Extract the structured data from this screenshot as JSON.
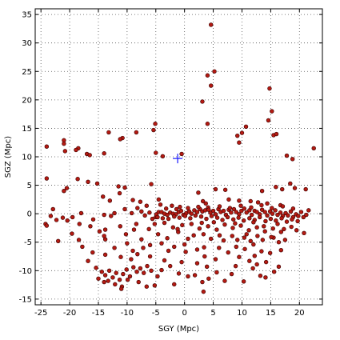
{
  "chart_data": {
    "type": "scatter",
    "xlabel": "SGY (Mpc)",
    "ylabel": "SGZ (Mpc)",
    "xlim": [
      -26,
      24
    ],
    "ylim": [
      -16,
      36
    ],
    "xticks": [
      -25,
      -20,
      -15,
      -10,
      -5,
      0,
      5,
      10,
      15,
      20
    ],
    "yticks": [
      -15,
      -10,
      -5,
      0,
      5,
      10,
      15,
      20,
      25,
      30,
      35
    ],
    "grid": true,
    "marker": {
      "shape": "circle",
      "fill": "#b41a12",
      "edge": "#3a0000"
    },
    "reference_point": {
      "x": -1.2,
      "y": 9.7,
      "marker": "plus",
      "color": "#1a1aff"
    },
    "points": [
      [
        4.6,
        33.2
      ],
      [
        5.2,
        25.0
      ],
      [
        4.0,
        24.3
      ],
      [
        4.6,
        22.5
      ],
      [
        3.1,
        19.7
      ],
      [
        14.8,
        22.0
      ],
      [
        15.2,
        18.0
      ],
      [
        14.6,
        16.4
      ],
      [
        4.0,
        15.8
      ],
      [
        -5.1,
        15.8
      ],
      [
        10.7,
        15.3
      ],
      [
        -13.2,
        14.3
      ],
      [
        -8.4,
        14.3
      ],
      [
        10.0,
        14.2
      ],
      [
        -5.4,
        14.7
      ],
      [
        -21.0,
        12.9
      ],
      [
        -21.0,
        12.3
      ],
      [
        -10.8,
        13.3
      ],
      [
        -11.2,
        13.1
      ],
      [
        9.2,
        13.7
      ],
      [
        9.5,
        12.5
      ],
      [
        -24.0,
        11.8
      ],
      [
        -18.5,
        11.5
      ],
      [
        -18.9,
        11.2
      ],
      [
        -20.8,
        11.0
      ],
      [
        -17.0,
        10.5
      ],
      [
        -14.0,
        10.6
      ],
      [
        -5.0,
        10.7
      ],
      [
        -3.8,
        10.1
      ],
      [
        -0.5,
        10.5
      ],
      [
        15.5,
        13.8
      ],
      [
        16.0,
        14.0
      ],
      [
        22.5,
        11.5
      ],
      [
        17.8,
        10.2
      ],
      [
        18.8,
        9.6
      ],
      [
        -16.5,
        10.3
      ],
      [
        -16.8,
        5.6
      ],
      [
        -24.0,
        6.2
      ],
      [
        -18.6,
        6.1
      ],
      [
        -15.2,
        5.3
      ],
      [
        -20.5,
        4.5
      ],
      [
        -21.0,
        4.0
      ],
      [
        -11.5,
        4.8
      ],
      [
        -10.4,
        4.6
      ],
      [
        -11.3,
        3.6
      ],
      [
        -5.8,
        5.2
      ],
      [
        2.4,
        3.7
      ],
      [
        5.4,
        4.3
      ],
      [
        7.1,
        4.2
      ],
      [
        13.5,
        4.0
      ],
      [
        15.9,
        4.7
      ],
      [
        18.4,
        5.3
      ],
      [
        19.2,
        4.5
      ],
      [
        17.0,
        4.3
      ],
      [
        21.1,
        4.3
      ],
      [
        -14.2,
        3.0
      ],
      [
        -13.0,
        2.3
      ],
      [
        -9.0,
        2.4
      ],
      [
        -7.7,
        2.1
      ],
      [
        -4.5,
        2.5
      ],
      [
        -4.2,
        1.6
      ],
      [
        -6.6,
        1.4
      ],
      [
        -8.2,
        1.0
      ],
      [
        -2.2,
        1.4
      ],
      [
        -0.8,
        1.2
      ],
      [
        3.2,
        2.2
      ],
      [
        3.7,
        1.8
      ],
      [
        7.7,
        2.5
      ],
      [
        9.5,
        2.3
      ],
      [
        11.5,
        2.2
      ],
      [
        12.8,
        2.0
      ],
      [
        14.4,
        1.8
      ],
      [
        16.7,
        1.5
      ],
      [
        -22.9,
        0.8
      ],
      [
        -18.0,
        0.1
      ],
      [
        -14.0,
        -0.2
      ],
      [
        -12.8,
        -0.4
      ],
      [
        -10.4,
        0.8
      ],
      [
        -9.2,
        0.1
      ],
      [
        -23.3,
        -0.4
      ],
      [
        -21.2,
        -0.7
      ],
      [
        -20.4,
        -1.2
      ],
      [
        -18.3,
        -1.8
      ],
      [
        -15.9,
        -1.0
      ],
      [
        -24.2,
        -1.8
      ],
      [
        -22.0,
        -4.8
      ],
      [
        -18.4,
        -4.6
      ],
      [
        -14.8,
        -3.1
      ],
      [
        -13.8,
        -4.5
      ],
      [
        -11.2,
        -2.2
      ],
      [
        -8.4,
        -1.8
      ],
      [
        -6.2,
        -2.7
      ],
      [
        -5.0,
        -0.6
      ],
      [
        -4.9,
        -0.1
      ],
      [
        -4.5,
        0.3
      ],
      [
        -4.0,
        0.3
      ],
      [
        -3.5,
        0.0
      ],
      [
        -3.0,
        -0.2
      ],
      [
        -2.5,
        0.2
      ],
      [
        -2.0,
        0.0
      ],
      [
        -1.5,
        -0.1
      ],
      [
        -1.0,
        0.3
      ],
      [
        -0.6,
        0.5
      ],
      [
        -0.2,
        -0.2
      ],
      [
        0.3,
        0.1
      ],
      [
        0.8,
        0.4
      ],
      [
        1.2,
        0.0
      ],
      [
        1.7,
        0.6
      ],
      [
        2.2,
        0.3
      ],
      [
        2.7,
        0.8
      ],
      [
        3.1,
        0.4
      ],
      [
        3.6,
        0.6
      ],
      [
        4.1,
        1.1
      ],
      [
        4.5,
        0.2
      ],
      [
        5.0,
        0.5
      ],
      [
        5.4,
        -0.1
      ],
      [
        5.9,
        0.8
      ],
      [
        6.3,
        0.3
      ],
      [
        6.8,
        0.5
      ],
      [
        7.2,
        -0.2
      ],
      [
        7.7,
        0.7
      ],
      [
        8.1,
        0.2
      ],
      [
        8.6,
        0.8
      ],
      [
        9.0,
        0.3
      ],
      [
        9.5,
        -0.1
      ],
      [
        9.9,
        0.5
      ],
      [
        10.4,
        0.9
      ],
      [
        10.8,
        0.2
      ],
      [
        11.3,
        0.6
      ],
      [
        11.7,
        -0.2
      ],
      [
        12.2,
        0.5
      ],
      [
        12.6,
        0.3
      ],
      [
        13.1,
        -0.1
      ],
      [
        13.5,
        0.7
      ],
      [
        14.0,
        0.3
      ],
      [
        14.4,
        -0.3
      ],
      [
        14.9,
        0.4
      ],
      [
        15.3,
        0.0
      ],
      [
        15.8,
        0.6
      ],
      [
        16.2,
        -0.2
      ],
      [
        16.7,
        0.2
      ],
      [
        17.1,
        -0.4
      ],
      [
        17.6,
        0.1
      ],
      [
        18.0,
        -0.3
      ],
      [
        18.5,
        0.4
      ],
      [
        18.9,
        -0.6
      ],
      [
        19.4,
        -0.1
      ],
      [
        19.8,
        -0.4
      ],
      [
        20.3,
        0.3
      ],
      [
        20.7,
        -0.6
      ],
      [
        21.2,
        -0.2
      ],
      [
        21.6,
        0.6
      ],
      [
        -4.7,
        -0.6
      ],
      [
        -3.8,
        -0.8
      ],
      [
        -2.8,
        -0.9
      ],
      [
        -1.8,
        -0.5
      ],
      [
        -0.9,
        -0.7
      ],
      [
        0.1,
        -0.4
      ],
      [
        1.0,
        -0.8
      ],
      [
        1.9,
        -0.3
      ],
      [
        2.9,
        -0.5
      ],
      [
        3.8,
        -0.9
      ],
      [
        4.7,
        -0.4
      ],
      [
        5.7,
        -0.7
      ],
      [
        6.6,
        -1.1
      ],
      [
        7.5,
        -0.6
      ],
      [
        8.5,
        -1.0
      ],
      [
        9.4,
        -0.7
      ],
      [
        10.3,
        -1.2
      ],
      [
        11.3,
        -0.8
      ],
      [
        12.2,
        -1.1
      ],
      [
        13.1,
        -0.6
      ],
      [
        14.1,
        -1.3
      ],
      [
        15.0,
        -0.9
      ],
      [
        15.9,
        -1.2
      ],
      [
        16.9,
        -0.8
      ],
      [
        17.8,
        -1.4
      ],
      [
        18.7,
        -1.0
      ],
      [
        19.7,
        -1.3
      ],
      [
        -3.2,
        0.9
      ],
      [
        -1.4,
        0.8
      ],
      [
        0.6,
        1.0
      ],
      [
        2.4,
        1.2
      ],
      [
        4.2,
        0.7
      ],
      [
        6.1,
        1.3
      ],
      [
        7.9,
        1.0
      ],
      [
        9.8,
        1.4
      ],
      [
        11.6,
        1.1
      ],
      [
        13.4,
        1.5
      ],
      [
        15.2,
        1.0
      ],
      [
        17.1,
        1.3
      ],
      [
        18.9,
        0.9
      ],
      [
        -5.2,
        -1.8
      ],
      [
        -3.5,
        -1.6
      ],
      [
        -2.0,
        -2.4
      ],
      [
        -0.4,
        -2.0
      ],
      [
        1.2,
        -1.8
      ],
      [
        2.6,
        -2.6
      ],
      [
        4.1,
        -2.2
      ],
      [
        5.6,
        -2.8
      ],
      [
        7.0,
        -1.9
      ],
      [
        8.4,
        -2.5
      ],
      [
        9.8,
        -2.1
      ],
      [
        11.2,
        -2.9
      ],
      [
        12.6,
        -2.4
      ],
      [
        14.0,
        -3.1
      ],
      [
        15.4,
        -2.6
      ],
      [
        16.8,
        -3.2
      ],
      [
        -4.6,
        -3.6
      ],
      [
        -3.0,
        -4.3
      ],
      [
        -1.1,
        -3.2
      ],
      [
        0.6,
        -4.4
      ],
      [
        1.6,
        -3.8
      ],
      [
        3.3,
        -3.6
      ],
      [
        4.6,
        -4.4
      ],
      [
        6.1,
        -3.8
      ],
      [
        8.3,
        -3.9
      ],
      [
        9.2,
        -4.6
      ],
      [
        10.4,
        -4.2
      ],
      [
        11.5,
        -4.8
      ],
      [
        12.7,
        -3.9
      ],
      [
        13.6,
        -4.6
      ],
      [
        15.5,
        -4.2
      ],
      [
        16.4,
        -5.0
      ],
      [
        17.5,
        -4.6
      ],
      [
        -14.0,
        -3.9
      ],
      [
        -7.5,
        -4.5
      ],
      [
        -12.2,
        -6.0
      ],
      [
        -10.0,
        -5.2
      ],
      [
        -9.0,
        -6.5
      ],
      [
        -7.2,
        -6.0
      ],
      [
        -6.0,
        -5.5
      ],
      [
        -4.0,
        -5.2
      ],
      [
        -1.8,
        -5.8
      ],
      [
        0.0,
        -5.4
      ],
      [
        2.2,
        -6.3
      ],
      [
        3.4,
        -5.9
      ],
      [
        6.0,
        -6.0
      ],
      [
        7.6,
        -6.8
      ],
      [
        9.0,
        -5.8
      ],
      [
        10.5,
        -6.2
      ],
      [
        12.0,
        -5.4
      ],
      [
        13.4,
        -6.6
      ],
      [
        14.9,
        -6.9
      ],
      [
        16.8,
        -6.4
      ],
      [
        -16.8,
        -8.3
      ],
      [
        -13.8,
        -7.2
      ],
      [
        -11.1,
        -7.6
      ],
      [
        -9.3,
        -8.0
      ],
      [
        -8.2,
        -7.1
      ],
      [
        -6.0,
        -7.5
      ],
      [
        -3.5,
        -8.2
      ],
      [
        2.2,
        -8.7
      ],
      [
        3.5,
        -7.5
      ],
      [
        5.4,
        -8.0
      ],
      [
        9.5,
        -7.6
      ],
      [
        11.3,
        -8.3
      ],
      [
        12.2,
        -7.4
      ],
      [
        14.2,
        -8.5
      ],
      [
        -15.4,
        -9.5
      ],
      [
        -14.4,
        -10.2
      ],
      [
        -13.8,
        -10.8
      ],
      [
        -13.1,
        -10.0
      ],
      [
        -12.5,
        -11.2
      ],
      [
        -11.9,
        -10.4
      ],
      [
        -11.3,
        -11.6
      ],
      [
        -10.7,
        -10.6
      ],
      [
        -10.1,
        -9.8
      ],
      [
        -9.5,
        -11.0
      ],
      [
        -8.9,
        -9.4
      ],
      [
        -8.3,
        -10.2
      ],
      [
        -7.7,
        -9.6
      ],
      [
        -7.1,
        -10.4
      ],
      [
        -6.5,
        -9.2
      ],
      [
        -5.8,
        -10.0
      ],
      [
        -15.0,
        -11.4
      ],
      [
        -14.0,
        -12.0
      ],
      [
        -13.3,
        -11.8
      ],
      [
        -12.1,
        -12.4
      ],
      [
        -10.9,
        -12.8
      ],
      [
        -9.9,
        -11.6
      ],
      [
        -8.0,
        -12.0
      ],
      [
        -4.7,
        -11.0
      ],
      [
        -4.0,
        -9.9
      ],
      [
        -2.5,
        -9.2
      ],
      [
        -1.0,
        -10.5
      ],
      [
        -1.8,
        -12.4
      ],
      [
        -5.2,
        -12.6
      ],
      [
        -6.6,
        -12.8
      ],
      [
        -11.0,
        -13.2
      ],
      [
        0.6,
        -11.0
      ],
      [
        1.8,
        -10.8
      ],
      [
        3.1,
        -12.0
      ],
      [
        4.2,
        -11.4
      ],
      [
        5.6,
        -10.3
      ],
      [
        7.0,
        -11.8
      ],
      [
        8.2,
        -10.6
      ],
      [
        10.3,
        -11.9
      ],
      [
        11.9,
        -9.6
      ],
      [
        13.2,
        -10.9
      ],
      [
        14.1,
        -11.2
      ],
      [
        15.6,
        -10.2
      ],
      [
        3.3,
        -13.7
      ],
      [
        -24.0,
        -2.1
      ],
      [
        -19.5,
        -0.6
      ],
      [
        -22.3,
        -1.1
      ],
      [
        -13.8,
        -2.8
      ],
      [
        -12.2,
        0.1
      ],
      [
        -7.5,
        0.4
      ],
      [
        -6.9,
        -0.3
      ],
      [
        -6.1,
        0.2
      ],
      [
        -5.6,
        -0.9
      ],
      [
        -1.2,
        -2.7
      ],
      [
        3.0,
        -1.6
      ],
      [
        5.1,
        -1.5
      ],
      [
        8.8,
        -1.7
      ],
      [
        12.0,
        -1.5
      ],
      [
        13.8,
        -2.2
      ],
      [
        16.2,
        -1.8
      ],
      [
        17.3,
        -2.7
      ],
      [
        18.6,
        -2.3
      ],
      [
        19.5,
        -2.9
      ],
      [
        20.8,
        -3.4
      ],
      [
        15.1,
        -4.1
      ],
      [
        10.8,
        -3.6
      ],
      [
        6.8,
        -4.7
      ],
      [
        0.2,
        -6.7
      ],
      [
        -2.8,
        -6.5
      ],
      [
        -0.5,
        -8.5
      ],
      [
        3.9,
        -9.3
      ],
      [
        8.9,
        -9.2
      ],
      [
        12.6,
        -8.9
      ],
      [
        16.4,
        -9.3
      ],
      [
        -16.0,
        -6.8
      ],
      [
        -17.8,
        -5.8
      ],
      [
        -19.6,
        -3.5
      ],
      [
        -16.4,
        -2.2
      ],
      [
        -8.8,
        -2.8
      ],
      [
        -10.2,
        -3.6
      ]
    ]
  }
}
